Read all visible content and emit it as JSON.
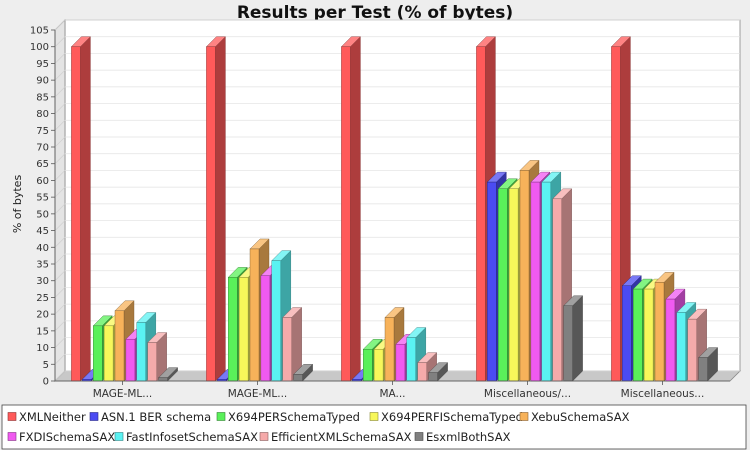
{
  "chart_data": {
    "type": "bar",
    "title": "Results per Test (% of bytes)",
    "xlabel": "",
    "ylabel": "% of bytes",
    "ylim": [
      0,
      105
    ],
    "ytick_step": 5,
    "grid": true,
    "three_d": true,
    "legend_position": "bottom",
    "categories": [
      "MAGE-ML...",
      "MAGE-ML...",
      "MA...",
      "Miscellaneous/...",
      "Miscellaneous..."
    ],
    "series": [
      {
        "name": "XMLNeither",
        "color": "#ff5a5a",
        "values": [
          100,
          100,
          100,
          100,
          100
        ]
      },
      {
        "name": "ASN.1 BER schema",
        "color": "#4b4bf2",
        "values": [
          0.5,
          0.5,
          0.5,
          59.5,
          28.5
        ]
      },
      {
        "name": "X694PERSchemaTyped",
        "color": "#5af05a",
        "values": [
          16.5,
          31,
          9.5,
          57.5,
          27.5
        ]
      },
      {
        "name": "X694PERFISchemaTyped",
        "color": "#f7f75a",
        "values": [
          16.5,
          31,
          9.5,
          57.5,
          27.5
        ]
      },
      {
        "name": "XebuSchemaSAX",
        "color": "#f7b25a",
        "values": [
          21,
          39.5,
          19,
          63,
          29.5
        ]
      },
      {
        "name": "FXDISchemaSAX",
        "color": "#f05af0",
        "values": [
          12.5,
          31.5,
          11,
          59.5,
          24.5
        ]
      },
      {
        "name": "FastInfosetSchemaSAX",
        "color": "#5af2f2",
        "values": [
          17.5,
          36,
          13,
          59.5,
          20.5
        ]
      },
      {
        "name": "EfficientXMLSchemaSAX",
        "color": "#f5aaaa",
        "values": [
          11.5,
          19,
          5.5,
          54.5,
          18.5
        ]
      },
      {
        "name": "EsxmlBothSAX",
        "color": "#808080",
        "values": [
          1,
          2,
          2.5,
          22.5,
          7
        ]
      }
    ]
  }
}
